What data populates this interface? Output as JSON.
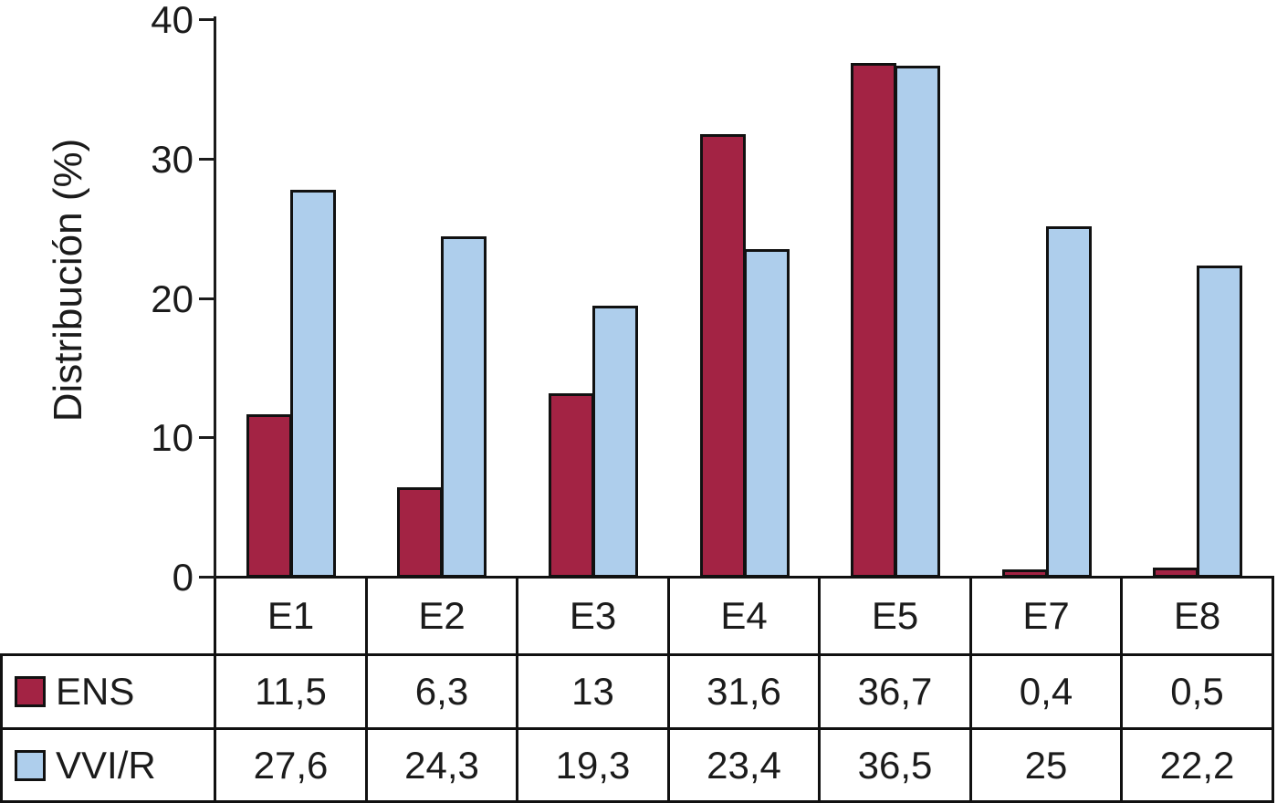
{
  "chart_data": {
    "type": "bar",
    "title": "",
    "ylabel": "Distribución (%)",
    "xlabel": "",
    "ylim": [
      0,
      40
    ],
    "yticks": [
      "0",
      "10",
      "20",
      "30",
      "40"
    ],
    "grid": false,
    "legend_position": "table-left",
    "categories": [
      "E1",
      "E2",
      "E3",
      "E4",
      "E5",
      "E7",
      "E8"
    ],
    "series": [
      {
        "name": "ENS",
        "color": "#a32344",
        "values": [
          11.5,
          6.3,
          13,
          31.6,
          36.7,
          0.4,
          0.5
        ],
        "labels": [
          "11,5",
          "6,3",
          "13",
          "31,6",
          "36,7",
          "0,4",
          "0,5"
        ]
      },
      {
        "name": "VVI/R",
        "color": "#aeceec",
        "values": [
          27.6,
          24.3,
          19.3,
          23.4,
          36.5,
          25,
          22.2
        ],
        "labels": [
          "27,6",
          "24,3",
          "19,3",
          "23,4",
          "36,5",
          "25",
          "22,2"
        ]
      }
    ]
  },
  "colors": {
    "ens": "#a32344",
    "vvir": "#aeceec",
    "line": "#1b1b1b",
    "background": "#ffffff"
  }
}
